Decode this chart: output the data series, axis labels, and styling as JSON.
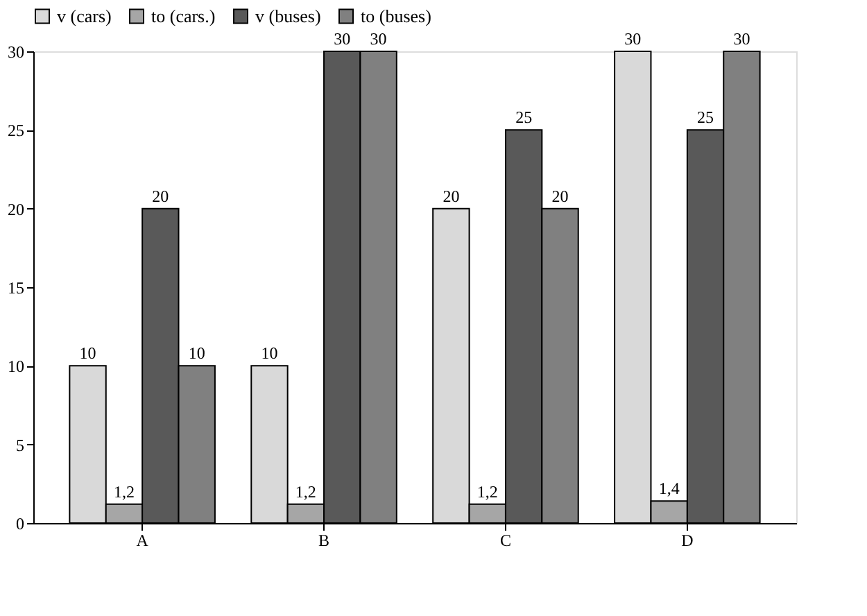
{
  "chart_data": {
    "type": "bar",
    "categories": [
      "A",
      "B",
      "C",
      "D"
    ],
    "series": [
      {
        "name": "v (cars)",
        "color": "#d9d9d9",
        "values": [
          10,
          10,
          20,
          30
        ],
        "value_labels": [
          "10",
          "10",
          "20",
          "30"
        ]
      },
      {
        "name": "to (cars.)",
        "color": "#a6a6a6",
        "values": [
          1.2,
          1.2,
          1.2,
          1.4
        ],
        "value_labels": [
          "1,2",
          "1,2",
          "1,2",
          "1,4"
        ]
      },
      {
        "name": "v (buses)",
        "color": "#595959",
        "values": [
          20,
          30,
          25,
          25
        ],
        "value_labels": [
          "20",
          "30",
          "25",
          "25"
        ]
      },
      {
        "name": "to (buses)",
        "color": "#808080",
        "values": [
          10,
          30,
          20,
          30
        ],
        "value_labels": [
          "10",
          "30",
          "20",
          "30"
        ]
      }
    ],
    "ylim": [
      0,
      30
    ],
    "yticks": [
      0,
      5,
      10,
      15,
      20,
      25,
      30
    ],
    "grid": false,
    "legend": "top"
  }
}
